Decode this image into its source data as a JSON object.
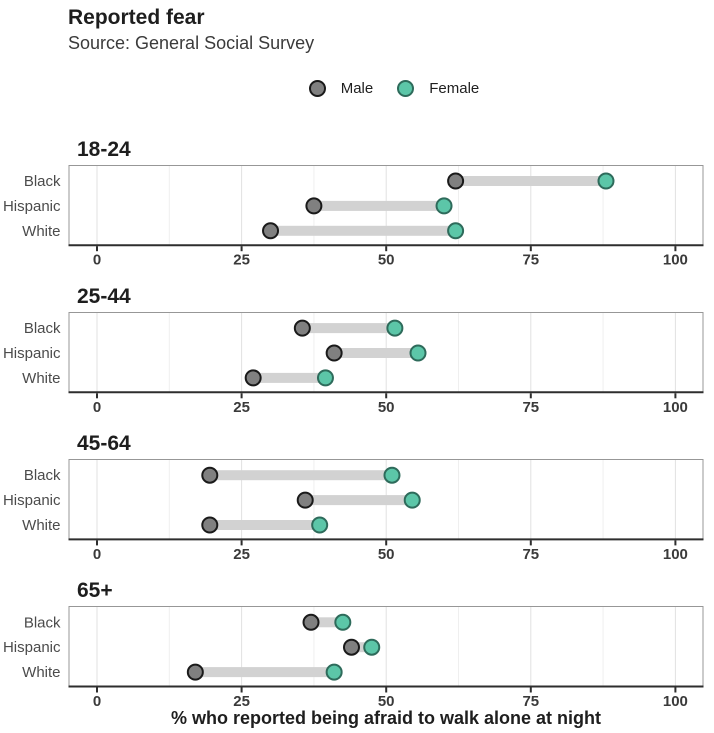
{
  "chart_data": {
    "type": "dumbbell",
    "title": "Reported fear",
    "subtitle": "Source: General Social Survey",
    "xlabel": "% who reported being afraid to walk alone at night",
    "ylabel": "",
    "series_names": [
      "Male",
      "Female"
    ],
    "legend_position": "top-center",
    "categories": [
      "Black",
      "Hispanic",
      "White"
    ],
    "x_ticks": [
      0,
      25,
      50,
      75,
      100
    ],
    "x_minor_gridlines": [
      12.5,
      37.5,
      62.5,
      87.5
    ],
    "xlim": [
      -4.8,
      104.8
    ],
    "grid": "vertical-major-and-minor",
    "panels": [
      {
        "label": "18-24",
        "rows": [
          {
            "category": "Black",
            "male": 62,
            "female": 88
          },
          {
            "category": "Hispanic",
            "male": 37.5,
            "female": 60
          },
          {
            "category": "White",
            "male": 30,
            "female": 62
          }
        ]
      },
      {
        "label": "25-44",
        "rows": [
          {
            "category": "Black",
            "male": 35.5,
            "female": 51.5
          },
          {
            "category": "Hispanic",
            "male": 41,
            "female": 55.5
          },
          {
            "category": "White",
            "male": 27,
            "female": 39.5
          }
        ]
      },
      {
        "label": "45-64",
        "rows": [
          {
            "category": "Black",
            "male": 19.5,
            "female": 51
          },
          {
            "category": "Hispanic",
            "male": 36,
            "female": 54.5
          },
          {
            "category": "White",
            "male": 19.5,
            "female": 38.5
          }
        ]
      },
      {
        "label": "65+",
        "rows": [
          {
            "category": "Black",
            "male": 37,
            "female": 42.5
          },
          {
            "category": "Hispanic",
            "male": 44,
            "female": 47.5
          },
          {
            "category": "White",
            "male": 17,
            "female": 41
          }
        ]
      }
    ],
    "colors": {
      "male_fill": "#808080",
      "male_stroke": "#1a1a1a",
      "female_fill": "#5cc6a8",
      "female_stroke": "#2e6b5b",
      "connector_bar": "#d2d2d2",
      "grid_major": "#e1e1e1",
      "grid_minor": "#efefef",
      "panel_border": "#979797",
      "axis_line": "#2e2e2e",
      "axis_text": "#3a3a3a",
      "y_axis_text": "#4b4b4b",
      "title_text": "#1e1e1e",
      "subtitle_text": "#3b3b3b"
    }
  }
}
